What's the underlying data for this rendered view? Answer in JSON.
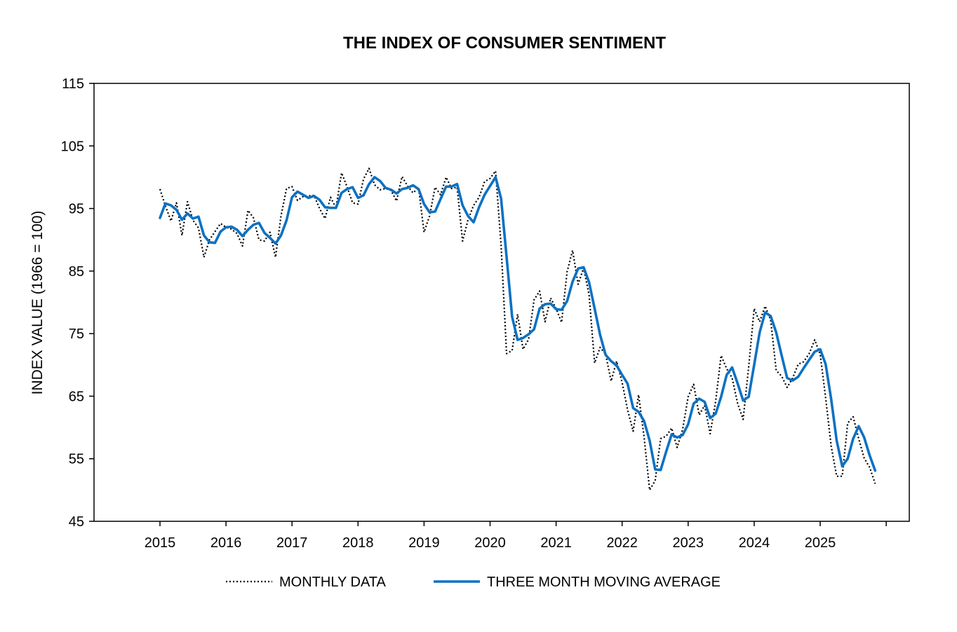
{
  "chart_data": {
    "type": "line",
    "title": "THE INDEX OF CONSUMER SENTIMENT",
    "xlabel": "",
    "ylabel": "INDEX VALUE (1966 = 100)",
    "ylim": [
      45,
      115
    ],
    "yticks": [
      "45",
      "55",
      "65",
      "75",
      "85",
      "95",
      "105",
      "115"
    ],
    "xlim": [
      2015,
      2026
    ],
    "xticks": [
      "2015",
      "2016",
      "2017",
      "2018",
      "2019",
      "2020",
      "2021",
      "2022",
      "2023",
      "2024",
      "2025"
    ],
    "grid": false,
    "legend": "bottom",
    "series": [
      {
        "name": "MONTHLY DATA",
        "style": "dotted",
        "color": "#000000",
        "x_start": "2015-01",
        "frequency": "monthly",
        "values": [
          98.1,
          95.4,
          93.0,
          95.9,
          90.7,
          96.1,
          93.1,
          91.9,
          87.2,
          90.0,
          91.3,
          92.6,
          92.0,
          91.7,
          91.0,
          89.0,
          94.7,
          93.5,
          90.0,
          89.8,
          91.2,
          87.2,
          93.8,
          98.2,
          98.5,
          96.3,
          96.9,
          97.0,
          97.1,
          95.0,
          93.4,
          96.8,
          95.1,
          100.7,
          98.5,
          95.9,
          95.7,
          99.7,
          101.4,
          98.8,
          98.0,
          98.2,
          97.9,
          96.2,
          100.1,
          98.6,
          97.5,
          98.3,
          91.2,
          93.8,
          98.4,
          97.2,
          100.0,
          98.2,
          98.4,
          89.8,
          93.2,
          95.5,
          96.8,
          99.3,
          99.8,
          101.0,
          89.1,
          71.8,
          72.3,
          78.1,
          72.5,
          74.1,
          80.4,
          81.8,
          76.9,
          80.7,
          79.0,
          76.8,
          84.9,
          88.3,
          82.9,
          85.5,
          81.2,
          70.3,
          72.8,
          71.7,
          67.4,
          70.6,
          67.2,
          62.8,
          59.4,
          65.2,
          58.4,
          50.0,
          51.5,
          58.2,
          58.6,
          59.9,
          56.8,
          59.7,
          64.9,
          66.9,
          62.0,
          63.5,
          59.0,
          64.2,
          71.5,
          69.4,
          67.9,
          63.8,
          61.3,
          69.7,
          79.0,
          76.9,
          79.4,
          77.2,
          69.1,
          68.2,
          66.4,
          67.9,
          70.1,
          70.5,
          71.8,
          74.0,
          71.7,
          64.7,
          57.0,
          52.2,
          52.2,
          60.7,
          61.7,
          58.2,
          55.1,
          53.6,
          51.0
        ]
      },
      {
        "name": "THREE MONTH MOVING AVERAGE",
        "style": "solid",
        "color": "#0c71c3",
        "x_start": "2015-01",
        "frequency": "monthly",
        "values": [
          93.5,
          95.8,
          95.5,
          94.8,
          93.2,
          94.2,
          93.4,
          93.7,
          90.7,
          89.6,
          89.5,
          91.3,
          92.0,
          92.1,
          91.6,
          90.6,
          91.6,
          92.4,
          92.7,
          91.1,
          90.3,
          89.4,
          90.7,
          93.1,
          96.8,
          97.7,
          97.2,
          96.7,
          97.0,
          96.4,
          95.2,
          95.1,
          95.1,
          97.5,
          98.1,
          98.4,
          96.7,
          97.1,
          98.9,
          100.0,
          99.4,
          98.3,
          98.0,
          97.4,
          98.1,
          98.3,
          98.7,
          98.1,
          95.7,
          94.4,
          94.5,
          96.5,
          98.5,
          98.5,
          98.9,
          95.5,
          93.8,
          92.8,
          95.2,
          97.2,
          98.6,
          100.0,
          96.6,
          87.3,
          77.7,
          74.0,
          74.3,
          74.9,
          75.7,
          79.0,
          79.7,
          79.8,
          78.9,
          78.8,
          80.2,
          83.3,
          85.4,
          85.6,
          83.2,
          79.0,
          74.8,
          71.6,
          70.6,
          69.9,
          68.4,
          67.0,
          63.1,
          62.5,
          61.0,
          57.9,
          53.3,
          53.2,
          56.1,
          58.9,
          58.4,
          58.8,
          60.5,
          63.8,
          64.6,
          64.1,
          61.5,
          62.2,
          64.9,
          68.4,
          69.6,
          67.0,
          64.3,
          64.9,
          70.0,
          75.2,
          78.4,
          77.8,
          75.2,
          71.5,
          67.9,
          67.5,
          68.1,
          69.5,
          70.8,
          72.1,
          72.5,
          70.1,
          64.5,
          57.9,
          53.8,
          55.0,
          58.2,
          60.2,
          58.4,
          55.5,
          53.1
        ]
      }
    ]
  }
}
